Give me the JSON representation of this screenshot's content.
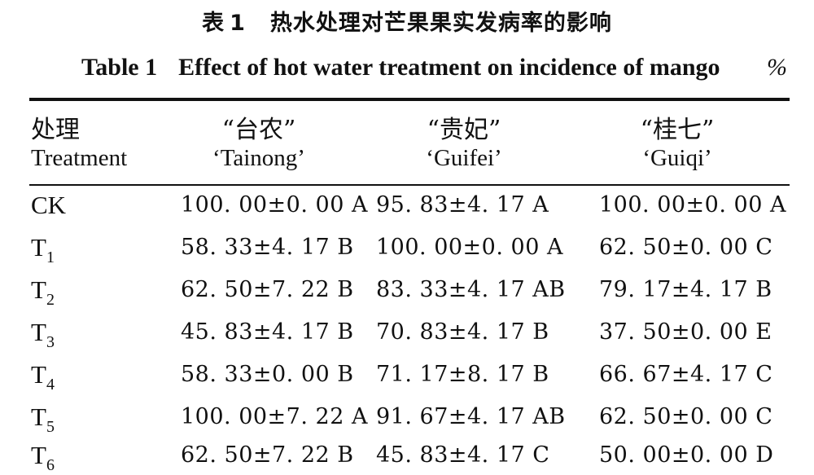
{
  "title_cn": {
    "label": "表",
    "number": "1",
    "text": "热水处理对芒果果实发病率的影响"
  },
  "title_en": {
    "label": "Table 1",
    "text": "Effect of hot water treatment on incidence of mango"
  },
  "unit": "%",
  "header": {
    "treatment_cn": "处理",
    "treatment_en": "Treatment",
    "columns": [
      {
        "cn": "“台农”",
        "en": "‘Tainong’"
      },
      {
        "cn": "“贵妃”",
        "en": "‘Guifei’"
      },
      {
        "cn": "“桂七”",
        "en": "‘Guiqi’"
      }
    ]
  },
  "rows": [
    {
      "label": "CK",
      "sub": "",
      "values": [
        "100. 00±0. 00 A",
        "95. 83±4. 17 A",
        "100. 00±0. 00 A"
      ]
    },
    {
      "label": "T",
      "sub": "1",
      "values": [
        "58. 33±4. 17 B",
        "100. 00±0. 00 A",
        "62. 50±0. 00 C"
      ]
    },
    {
      "label": "T",
      "sub": "2",
      "values": [
        "62. 50±7. 22 B",
        "83. 33±4. 17 AB",
        "79. 17±4. 17 B"
      ]
    },
    {
      "label": "T",
      "sub": "3",
      "values": [
        "45. 83±4. 17 B",
        "70. 83±4. 17 B",
        "37. 50±0. 00 E"
      ]
    },
    {
      "label": "T",
      "sub": "4",
      "values": [
        "58. 33±0. 00 B",
        "71. 17±8. 17 B",
        "66. 67±4. 17 C"
      ]
    },
    {
      "label": "T",
      "sub": "5",
      "values": [
        "100. 00±7. 22 A",
        "91. 67±4. 17 AB",
        "62. 50±0. 00 C"
      ]
    },
    {
      "label": "T",
      "sub": "6",
      "values": [
        "62. 50±7. 22 B",
        "45. 83±4. 17 C",
        "50. 00±0. 00 D"
      ]
    }
  ]
}
